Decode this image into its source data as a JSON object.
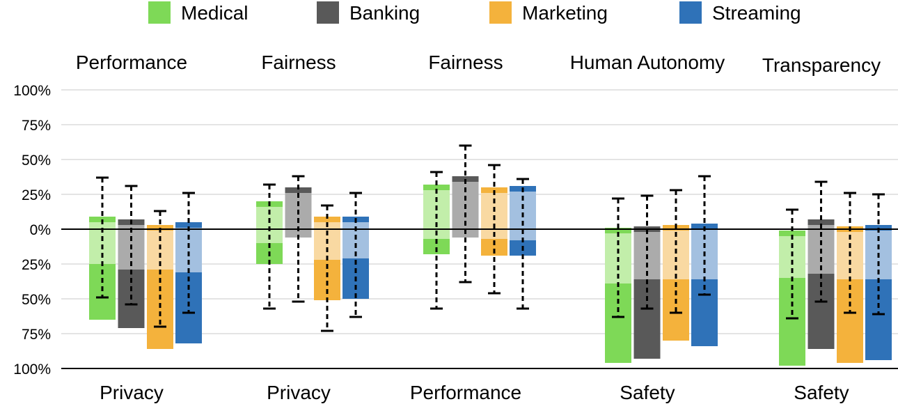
{
  "chart_data": {
    "type": "bar",
    "subtype": "diverging-stacked-bar-with-error-bars",
    "y_tick_labels": [
      "100%",
      "75%",
      "50%",
      "25%",
      "0%",
      "25%",
      "50%",
      "75%",
      "100%"
    ],
    "y_tick_values": [
      100,
      75,
      50,
      25,
      0,
      -25,
      -50,
      -75,
      -100
    ],
    "ylim": [
      -100,
      100
    ],
    "grid": true,
    "legend_position": "top",
    "legend": [
      {
        "name": "Medical",
        "color": "#7ed957",
        "light_color": "#c2eeaa"
      },
      {
        "name": "Banking",
        "color": "#595959",
        "light_color": "#ababab"
      },
      {
        "name": "Marketing",
        "color": "#f4b23c",
        "light_color": "#f9d9a2"
      },
      {
        "name": "Streaming",
        "color": "#2f72b8",
        "light_color": "#a3c0e0"
      }
    ],
    "groups": [
      {
        "top_label": "Performance",
        "bottom_label": "Privacy",
        "bars": [
          {
            "domain": "Medical",
            "top": 9,
            "mid": -25,
            "bottom": -65,
            "err_high": 37,
            "err_low": -49
          },
          {
            "domain": "Banking",
            "top": 7,
            "mid": -29,
            "bottom": -71,
            "err_high": 31,
            "err_low": -54
          },
          {
            "domain": "Marketing",
            "top": 3,
            "mid": -29,
            "bottom": -86,
            "err_high": 13,
            "err_low": -70
          },
          {
            "domain": "Streaming",
            "top": 5,
            "mid": -31,
            "bottom": -82,
            "err_high": 26,
            "err_low": -60
          }
        ]
      },
      {
        "top_label": "Fairness",
        "bottom_label": "Privacy",
        "bars": [
          {
            "domain": "Medical",
            "top": 20,
            "mid": -10,
            "bottom": -25,
            "err_high": 32,
            "err_low": -57
          },
          {
            "domain": "Banking",
            "top": 30,
            "mid": -6,
            "bottom": -6,
            "err_high": 38,
            "err_low": -52
          },
          {
            "domain": "Marketing",
            "top": 9,
            "mid": -22,
            "bottom": -51,
            "err_high": 17,
            "err_low": -73
          },
          {
            "domain": "Streaming",
            "top": 9,
            "mid": -21,
            "bottom": -50,
            "err_high": 26,
            "err_low": -63
          }
        ]
      },
      {
        "top_label": "Fairness",
        "bottom_label": "Performance",
        "bars": [
          {
            "domain": "Medical",
            "top": 32,
            "mid": -7,
            "bottom": -18,
            "err_high": 41,
            "err_low": -57
          },
          {
            "domain": "Banking",
            "top": 38,
            "mid": -6,
            "bottom": -6,
            "err_high": 60,
            "err_low": -38
          },
          {
            "domain": "Marketing",
            "top": 30,
            "mid": -7,
            "bottom": -19,
            "err_high": 46,
            "err_low": -46
          },
          {
            "domain": "Streaming",
            "top": 31,
            "mid": -8,
            "bottom": -19,
            "err_high": 36,
            "err_low": -57
          }
        ]
      },
      {
        "top_label": "Human Autonomy",
        "bottom_label": "Safety",
        "bars": [
          {
            "domain": "Medical",
            "top": 1,
            "mid": -39,
            "bottom": -96,
            "err_high": 22,
            "err_low": -63
          },
          {
            "domain": "Banking",
            "top": 2,
            "mid": -36,
            "bottom": -93,
            "err_high": 24,
            "err_low": -57
          },
          {
            "domain": "Marketing",
            "top": 3,
            "mid": -36,
            "bottom": -80,
            "err_high": 28,
            "err_low": -60
          },
          {
            "domain": "Streaming",
            "top": 4,
            "mid": -36,
            "bottom": -84,
            "err_high": 38,
            "err_low": -47
          }
        ]
      },
      {
        "top_label": "Transparency",
        "bottom_label": "Safety",
        "bars": [
          {
            "domain": "Medical",
            "top": -1,
            "mid": -35,
            "bottom": -98,
            "err_high": 14,
            "err_low": -64
          },
          {
            "domain": "Banking",
            "top": 7,
            "mid": -32,
            "bottom": -86,
            "err_high": 34,
            "err_low": -52
          },
          {
            "domain": "Marketing",
            "top": 2,
            "mid": -36,
            "bottom": -96,
            "err_high": 26,
            "err_low": -60
          },
          {
            "domain": "Streaming",
            "top": 3,
            "mid": -36,
            "bottom": -94,
            "err_high": 25,
            "err_low": -61
          }
        ]
      }
    ]
  }
}
